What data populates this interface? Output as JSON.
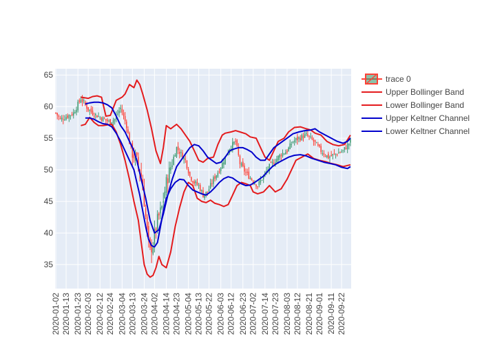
{
  "chart_data": {
    "type": "candlestick",
    "title": "",
    "xlabel": "",
    "ylabel": "",
    "ylim": [
      31.2,
      66.0
    ],
    "yticks": [
      35,
      40,
      45,
      50,
      55,
      60,
      65
    ],
    "xticks": [
      "2020-01-02",
      "2020-01-13",
      "2020-01-23",
      "2020-02-03",
      "2020-02-12",
      "2020-02-24",
      "2020-03-04",
      "2020-03-13",
      "2020-03-24",
      "2020-04-02",
      "2020-04-14",
      "2020-04-23",
      "2020-05-04",
      "2020-05-13",
      "2020-05-22",
      "2020-06-03",
      "2020-06-12",
      "2020-06-23",
      "2020-07-02",
      "2020-07-14",
      "2020-07-23",
      "2020-08-03",
      "2020-08-12",
      "2020-08-21",
      "2020-09-01",
      "2020-09-11",
      "2020-09-22"
    ],
    "grid": true,
    "legend_position": "top-right",
    "colors": {
      "increasing": "#3d9970",
      "decreasing": "#ff4136",
      "bollinger": "#e41a1c",
      "keltner": "#0000cc",
      "plot_bg": "#e5ecf6"
    },
    "legend": [
      {
        "label": "trace 0",
        "kind": "candle"
      },
      {
        "label": "Upper Bollinger Band",
        "kind": "line",
        "color": "#e41a1c"
      },
      {
        "label": "Lower Bollinger Band",
        "kind": "line",
        "color": "#e41a1c"
      },
      {
        "label": "Upper Keltner Channel",
        "kind": "line",
        "color": "#0000cc"
      },
      {
        "label": "Lower Keltner Channel",
        "kind": "line",
        "color": "#0000cc"
      }
    ],
    "close_anchors": [
      [
        0,
        59.0
      ],
      [
        3,
        58.0
      ],
      [
        7,
        58.4
      ],
      [
        12,
        59.0
      ],
      [
        17,
        61.3
      ],
      [
        22,
        59.6
      ],
      [
        27,
        58.7
      ],
      [
        31,
        58.2
      ],
      [
        36,
        57.6
      ],
      [
        40,
        58.0
      ],
      [
        44,
        59.8
      ],
      [
        48,
        57.0
      ],
      [
        51,
        53.0
      ],
      [
        55,
        51.5
      ],
      [
        58,
        49.0
      ],
      [
        60,
        45.0
      ],
      [
        62,
        40.0
      ],
      [
        64,
        37.0
      ],
      [
        66,
        38.5
      ],
      [
        69,
        42.0
      ],
      [
        72,
        44.0
      ],
      [
        75,
        48.0
      ],
      [
        78,
        50.5
      ],
      [
        82,
        53.5
      ],
      [
        85,
        52.5
      ],
      [
        88,
        51.5
      ],
      [
        91,
        49.0
      ],
      [
        94,
        48.0
      ],
      [
        97,
        47.5
      ],
      [
        100,
        46.0
      ],
      [
        103,
        46.5
      ],
      [
        107,
        48.5
      ],
      [
        111,
        50.0
      ],
      [
        114,
        51.5
      ],
      [
        118,
        53.5
      ],
      [
        122,
        54.5
      ],
      [
        125,
        51.0
      ],
      [
        129,
        49.5
      ],
      [
        133,
        48.5
      ],
      [
        137,
        47.5
      ],
      [
        141,
        49.0
      ],
      [
        145,
        50.5
      ],
      [
        149,
        51.5
      ],
      [
        153,
        52.5
      ],
      [
        157,
        53.0
      ],
      [
        161,
        54.5
      ],
      [
        165,
        55.0
      ],
      [
        170,
        55.5
      ],
      [
        175,
        54.5
      ],
      [
        180,
        53.0
      ],
      [
        185,
        52.0
      ],
      [
        190,
        52.5
      ],
      [
        195,
        53.0
      ],
      [
        200,
        54.5
      ]
    ],
    "bands": {
      "upper_bollinger": [
        [
          17,
          61.5
        ],
        [
          22,
          61.3
        ],
        [
          25,
          61.6
        ],
        [
          28,
          61.7
        ],
        [
          31,
          61.5
        ],
        [
          34,
          58.5
        ],
        [
          37,
          58.6
        ],
        [
          41,
          61.0
        ],
        [
          45,
          61.5
        ],
        [
          47,
          62.0
        ],
        [
          50,
          63.5
        ],
        [
          53,
          63.0
        ],
        [
          55,
          64.2
        ],
        [
          57,
          63.5
        ],
        [
          59,
          62.0
        ],
        [
          62,
          59.5
        ],
        [
          65,
          56.5
        ],
        [
          68,
          53.0
        ],
        [
          71,
          51.0
        ],
        [
          73,
          53.5
        ],
        [
          75,
          57.0
        ],
        [
          78,
          56.5
        ],
        [
          82,
          57.2
        ],
        [
          85,
          56.5
        ],
        [
          88,
          55.5
        ],
        [
          91,
          54.5
        ],
        [
          94,
          53.0
        ],
        [
          97,
          51.5
        ],
        [
          100,
          51.2
        ],
        [
          103,
          51.8
        ],
        [
          107,
          52.0
        ],
        [
          110,
          54.0
        ],
        [
          113,
          55.5
        ],
        [
          115,
          55.8
        ],
        [
          119,
          56.0
        ],
        [
          122,
          56.2
        ],
        [
          125,
          56.0
        ],
        [
          129,
          55.7
        ],
        [
          132,
          55.2
        ],
        [
          136,
          55.0
        ],
        [
          139,
          53.5
        ],
        [
          142,
          52.0
        ],
        [
          145,
          51.5
        ],
        [
          148,
          53.0
        ],
        [
          151,
          54.5
        ],
        [
          155,
          55.0
        ],
        [
          158,
          56.0
        ],
        [
          162,
          56.7
        ],
        [
          166,
          56.8
        ],
        [
          170,
          56.5
        ],
        [
          173,
          56.3
        ],
        [
          176,
          55.8
        ],
        [
          180,
          55.5
        ],
        [
          184,
          54.5
        ],
        [
          188,
          54.0
        ],
        [
          192,
          53.8
        ],
        [
          196,
          54.0
        ],
        [
          200,
          55.5
        ]
      ],
      "lower_bollinger": [
        [
          17,
          57.0
        ],
        [
          20,
          57.2
        ],
        [
          23,
          58.3
        ],
        [
          26,
          57.5
        ],
        [
          29,
          57.0
        ],
        [
          32,
          57.0
        ],
        [
          35,
          57.1
        ],
        [
          38,
          57.2
        ],
        [
          41,
          56.0
        ],
        [
          44,
          54.0
        ],
        [
          47,
          51.5
        ],
        [
          50,
          48.5
        ],
        [
          53,
          45.0
        ],
        [
          56,
          42.0
        ],
        [
          58,
          38.5
        ],
        [
          60,
          35.0
        ],
        [
          62,
          33.5
        ],
        [
          64,
          33.0
        ],
        [
          66,
          33.3
        ],
        [
          68,
          34.5
        ],
        [
          70,
          36.3
        ],
        [
          72,
          35.0
        ],
        [
          75,
          34.5
        ],
        [
          78,
          37.0
        ],
        [
          81,
          41.0
        ],
        [
          84,
          44.0
        ],
        [
          87,
          46.5
        ],
        [
          90,
          48.0
        ],
        [
          93,
          47.5
        ],
        [
          96,
          45.5
        ],
        [
          99,
          45.0
        ],
        [
          102,
          44.8
        ],
        [
          105,
          45.2
        ],
        [
          108,
          44.7
        ],
        [
          111,
          44.5
        ],
        [
          114,
          44.2
        ],
        [
          117,
          44.5
        ],
        [
          120,
          46.0
        ],
        [
          123,
          47.5
        ],
        [
          126,
          48.0
        ],
        [
          129,
          47.8
        ],
        [
          132,
          47.5
        ],
        [
          134,
          46.5
        ],
        [
          137,
          46.2
        ],
        [
          141,
          46.5
        ],
        [
          145,
          47.5
        ],
        [
          149,
          46.5
        ],
        [
          153,
          47.0
        ],
        [
          157,
          48.5
        ],
        [
          160,
          50.0
        ],
        [
          163,
          51.5
        ],
        [
          167,
          52.0
        ],
        [
          171,
          52.5
        ],
        [
          175,
          51.8
        ],
        [
          179,
          51.5
        ],
        [
          183,
          51.3
        ],
        [
          187,
          51.0
        ],
        [
          191,
          50.8
        ],
        [
          195,
          50.5
        ],
        [
          200,
          50.8
        ]
      ],
      "upper_keltner": [
        [
          20,
          60.4
        ],
        [
          23,
          60.6
        ],
        [
          26,
          60.7
        ],
        [
          29,
          60.7
        ],
        [
          32,
          60.6
        ],
        [
          35,
          60.3
        ],
        [
          38,
          59.8
        ],
        [
          41,
          58.5
        ],
        [
          44,
          57.0
        ],
        [
          47,
          56.0
        ],
        [
          50,
          54.5
        ],
        [
          53,
          53.0
        ],
        [
          55,
          51.5
        ],
        [
          58,
          48.5
        ],
        [
          61,
          45.5
        ],
        [
          64,
          42.0
        ],
        [
          67,
          40.0
        ],
        [
          70,
          40.5
        ],
        [
          73,
          43.0
        ],
        [
          76,
          46.0
        ],
        [
          79,
          48.5
        ],
        [
          82,
          50.5
        ],
        [
          85,
          51.5
        ],
        [
          88,
          52.5
        ],
        [
          91,
          53.5
        ],
        [
          94,
          54.0
        ],
        [
          97,
          53.8
        ],
        [
          100,
          53.0
        ],
        [
          103,
          52.0
        ],
        [
          106,
          51.5
        ],
        [
          109,
          51.0
        ],
        [
          112,
          51.2
        ],
        [
          115,
          52.0
        ],
        [
          118,
          53.0
        ],
        [
          121,
          53.3
        ],
        [
          124,
          53.5
        ],
        [
          127,
          53.5
        ],
        [
          130,
          53.2
        ],
        [
          133,
          52.8
        ],
        [
          136,
          52.0
        ],
        [
          139,
          51.5
        ],
        [
          142,
          51.5
        ],
        [
          145,
          52.5
        ],
        [
          148,
          53.5
        ],
        [
          151,
          54.0
        ],
        [
          154,
          54.5
        ],
        [
          157,
          55.0
        ],
        [
          161,
          55.7
        ],
        [
          165,
          56.0
        ],
        [
          169,
          56.2
        ],
        [
          173,
          56.3
        ],
        [
          176,
          56.5
        ],
        [
          179,
          56.0
        ],
        [
          183,
          55.5
        ],
        [
          187,
          55.0
        ],
        [
          191,
          54.5
        ],
        [
          195,
          54.2
        ],
        [
          198,
          54.5
        ],
        [
          200,
          55.0
        ]
      ],
      "lower_keltner": [
        [
          20,
          58.2
        ],
        [
          23,
          58.2
        ],
        [
          26,
          58.0
        ],
        [
          29,
          57.6
        ],
        [
          32,
          57.3
        ],
        [
          35,
          57.2
        ],
        [
          38,
          56.8
        ],
        [
          41,
          55.8
        ],
        [
          44,
          54.5
        ],
        [
          47,
          53.0
        ],
        [
          50,
          51.5
        ],
        [
          53,
          50.0
        ],
        [
          55,
          48.0
        ],
        [
          57,
          46.0
        ],
        [
          59,
          43.5
        ],
        [
          61,
          41.0
        ],
        [
          63,
          39.0
        ],
        [
          65,
          38.0
        ],
        [
          67,
          37.8
        ],
        [
          69,
          38.5
        ],
        [
          71,
          41.0
        ],
        [
          73,
          43.5
        ],
        [
          75,
          45.5
        ],
        [
          78,
          47.0
        ],
        [
          81,
          48.0
        ],
        [
          84,
          48.5
        ],
        [
          87,
          48.4
        ],
        [
          90,
          47.5
        ],
        [
          93,
          46.8
        ],
        [
          96,
          46.5
        ],
        [
          99,
          46.2
        ],
        [
          102,
          46.0
        ],
        [
          105,
          46.5
        ],
        [
          108,
          47.2
        ],
        [
          111,
          48.0
        ],
        [
          114,
          48.6
        ],
        [
          117,
          48.9
        ],
        [
          120,
          48.7
        ],
        [
          123,
          48.2
        ],
        [
          126,
          47.8
        ],
        [
          129,
          47.5
        ],
        [
          132,
          47.6
        ],
        [
          135,
          48.0
        ],
        [
          138,
          48.5
        ],
        [
          141,
          49.0
        ],
        [
          144,
          49.8
        ],
        [
          147,
          50.5
        ],
        [
          150,
          51.0
        ],
        [
          154,
          51.5
        ],
        [
          158,
          52.0
        ],
        [
          162,
          52.3
        ],
        [
          166,
          52.4
        ],
        [
          170,
          52.2
        ],
        [
          174,
          51.8
        ],
        [
          178,
          51.5
        ],
        [
          182,
          51.2
        ],
        [
          186,
          51.0
        ],
        [
          190,
          50.8
        ],
        [
          194,
          50.4
        ],
        [
          198,
          50.2
        ],
        [
          200,
          50.5
        ]
      ]
    }
  }
}
